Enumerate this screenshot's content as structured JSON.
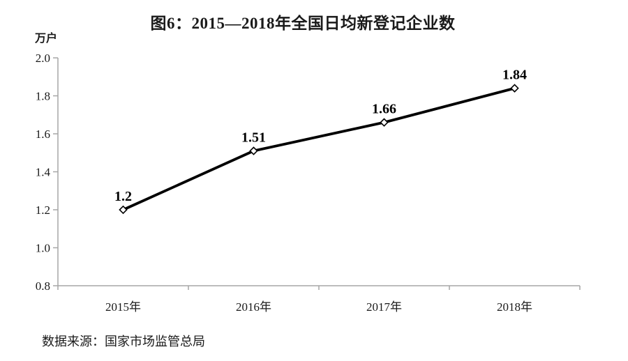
{
  "source_note": "数据来源：国家市场监管总局",
  "chart_data": {
    "type": "line",
    "title": "图6：2015—2018年全国日均新登记企业数",
    "unit": "万户",
    "xlabel": "",
    "ylabel": "万户",
    "categories": [
      "2015年",
      "2016年",
      "2017年",
      "2018年"
    ],
    "values": [
      1.2,
      1.51,
      1.66,
      1.84
    ],
    "data_labels": [
      "1.2",
      "1.51",
      "1.66",
      "1.84"
    ],
    "ylim": [
      0.8,
      2.0
    ],
    "y_ticks": [
      0.8,
      1.0,
      1.2,
      1.4,
      1.6,
      1.8,
      2.0
    ],
    "y_tick_labels": [
      "0.8",
      "1.0",
      "1.2",
      "1.4",
      "1.6",
      "1.8",
      "2.0"
    ],
    "grid": false,
    "legend": "none",
    "marker": "open-diamond",
    "colors": {
      "line": "#000000",
      "marker_fill": "#ffffff",
      "marker_stroke": "#000000",
      "axis": "#a6a6a6",
      "text": "#1a1a1a"
    }
  }
}
